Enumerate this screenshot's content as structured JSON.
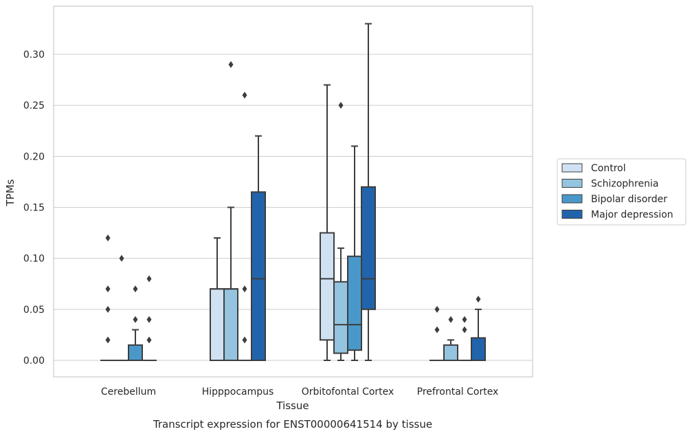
{
  "caption": "Transcript expression for ENST00000641514 by tissue",
  "chart_data": {
    "type": "box",
    "title": "",
    "xlabel": "Tissue",
    "ylabel": "TPMs",
    "ylim": [
      -0.016,
      0.346
    ],
    "yticks": [
      0.0,
      0.05,
      0.1,
      0.15,
      0.2,
      0.25,
      0.3
    ],
    "ytick_labels": [
      "0.00",
      "0.05",
      "0.10",
      "0.15",
      "0.20",
      "0.25",
      "0.30"
    ],
    "grid": "horizontal",
    "legend_position": "right",
    "categories": [
      "Cerebellum",
      "Hipppocampus",
      "Orbitofontal Cortex",
      "Prefrontal Cortex"
    ],
    "series": [
      {
        "name": "Control",
        "color": "#d0e1f2",
        "boxes": [
          {
            "q1": 0.0,
            "median": 0.0,
            "q3": 0.0,
            "whislo": 0.0,
            "whishi": 0.0,
            "fliers": [
              0.02,
              0.05,
              0.07,
              0.12
            ]
          },
          {
            "q1": 0.0,
            "median": 0.07,
            "q3": 0.07,
            "whislo": 0.0,
            "whishi": 0.12,
            "fliers": []
          },
          {
            "q1": 0.02,
            "median": 0.08,
            "q3": 0.125,
            "whislo": 0.0,
            "whishi": 0.27,
            "fliers": []
          },
          {
            "q1": 0.0,
            "median": 0.0,
            "q3": 0.0,
            "whislo": 0.0,
            "whishi": 0.0,
            "fliers": [
              0.03,
              0.05
            ]
          }
        ]
      },
      {
        "name": "Schizophrenia",
        "color": "#94c4df",
        "boxes": [
          {
            "q1": 0.0,
            "median": 0.0,
            "q3": 0.0,
            "whislo": 0.0,
            "whishi": 0.0,
            "fliers": [
              0.1
            ]
          },
          {
            "q1": 0.0,
            "median": 0.07,
            "q3": 0.07,
            "whislo": 0.0,
            "whishi": 0.15,
            "fliers": [
              0.29
            ]
          },
          {
            "q1": 0.007,
            "median": 0.035,
            "q3": 0.077,
            "whislo": 0.0,
            "whishi": 0.11,
            "fliers": [
              0.25
            ]
          },
          {
            "q1": 0.0,
            "median": 0.0,
            "q3": 0.015,
            "whislo": 0.0,
            "whishi": 0.02,
            "fliers": [
              0.04
            ]
          }
        ]
      },
      {
        "name": "Bipolar disorder",
        "color": "#4a98c9",
        "boxes": [
          {
            "q1": 0.0,
            "median": 0.0,
            "q3": 0.015,
            "whislo": 0.0,
            "whishi": 0.03,
            "fliers": [
              0.04,
              0.07
            ]
          },
          {
            "q1": 0.0,
            "median": 0.0,
            "q3": 0.0,
            "whislo": 0.0,
            "whishi": 0.0,
            "fliers": [
              0.02,
              0.07,
              0.26
            ]
          },
          {
            "q1": 0.01,
            "median": 0.035,
            "q3": 0.102,
            "whislo": 0.0,
            "whishi": 0.21,
            "fliers": []
          },
          {
            "q1": 0.0,
            "median": 0.0,
            "q3": 0.0,
            "whislo": 0.0,
            "whishi": 0.0,
            "fliers": [
              0.03,
              0.04
            ]
          }
        ]
      },
      {
        "name": "Major depression",
        "color": "#2164ab",
        "boxes": [
          {
            "q1": 0.0,
            "median": 0.0,
            "q3": 0.0,
            "whislo": 0.0,
            "whishi": 0.0,
            "fliers": [
              0.02,
              0.04,
              0.08
            ]
          },
          {
            "q1": 0.0,
            "median": 0.08,
            "q3": 0.165,
            "whislo": 0.0,
            "whishi": 0.22,
            "fliers": []
          },
          {
            "q1": 0.05,
            "median": 0.08,
            "q3": 0.17,
            "whislo": 0.0,
            "whishi": 0.33,
            "fliers": []
          },
          {
            "q1": 0.0,
            "median": 0.0,
            "q3": 0.022,
            "whislo": 0.0,
            "whishi": 0.05,
            "fliers": [
              0.06
            ]
          }
        ]
      }
    ]
  }
}
